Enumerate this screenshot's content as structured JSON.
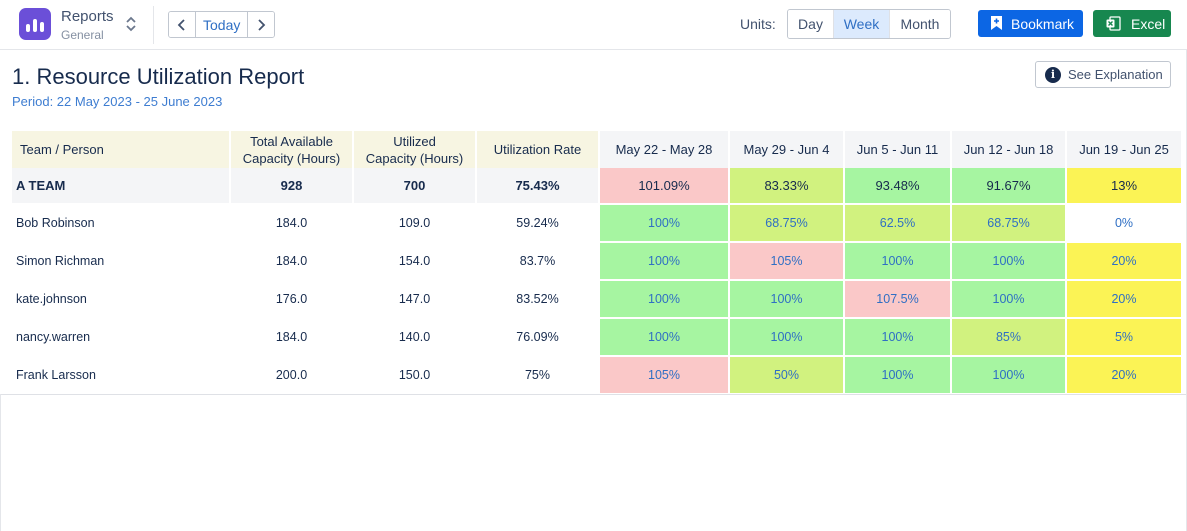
{
  "app": {
    "title": "Reports",
    "subtitle": "General"
  },
  "nav": {
    "prev_icon": "chevron-left-icon",
    "today_label": "Today",
    "next_icon": "chevron-right-icon"
  },
  "units": {
    "label": "Units:",
    "options": [
      "Day",
      "Week",
      "Month"
    ],
    "selected": "Week"
  },
  "actions": {
    "bookmark_label": "Bookmark",
    "excel_label": "Excel"
  },
  "report": {
    "title": "1. Resource Utilization Report",
    "period": "Period: 22 May 2023 - 25 June 2023",
    "explain_label": "See Explanation"
  },
  "table": {
    "headers": {
      "name": "Team / Person",
      "total_capacity_1": "Total Available",
      "total_capacity_2": "Capacity (Hours)",
      "utilized_1": "Utilized",
      "utilized_2": "Capacity (Hours)",
      "rate": "Utilization Rate",
      "weeks": [
        "May 22 - May 28",
        "May 29 - Jun 4",
        "Jun 5 - Jun 11",
        "Jun 12 - Jun 18",
        "Jun 19 - Jun 25"
      ]
    },
    "team": {
      "name": "A TEAM",
      "total": "928",
      "utilized": "700",
      "rate": "75.43%",
      "weeks": [
        "101.09%",
        "83.33%",
        "93.48%",
        "91.67%",
        "13%"
      ]
    },
    "people": [
      {
        "name": "Bob Robinson",
        "total": "184.0",
        "utilized": "109.0",
        "rate": "59.24%",
        "weeks": [
          "100%",
          "68.75%",
          "62.5%",
          "68.75%",
          "0%"
        ]
      },
      {
        "name": "Simon Richman",
        "total": "184.0",
        "utilized": "154.0",
        "rate": "83.7%",
        "weeks": [
          "100%",
          "105%",
          "100%",
          "100%",
          "20%"
        ]
      },
      {
        "name": "kate.johnson",
        "total": "176.0",
        "utilized": "147.0",
        "rate": "83.52%",
        "weeks": [
          "100%",
          "100%",
          "107.5%",
          "100%",
          "20%"
        ]
      },
      {
        "name": "nancy.warren",
        "total": "184.0",
        "utilized": "140.0",
        "rate": "76.09%",
        "weeks": [
          "100%",
          "100%",
          "100%",
          "85%",
          "5%"
        ]
      },
      {
        "name": "Frank Larsson",
        "total": "200.0",
        "utilized": "150.0",
        "rate": "75%",
        "weeks": [
          "105%",
          "50%",
          "100%",
          "100%",
          "20%"
        ]
      }
    ]
  },
  "colors": {
    "over": "#fac8c8",
    "partial": "#d1f27f",
    "full": "#a6f5a1",
    "low": "#fbf355",
    "none": "#ffffff",
    "primary": "#0c66e4",
    "excel": "#17874f",
    "app_icon": "#6b4fd8"
  }
}
